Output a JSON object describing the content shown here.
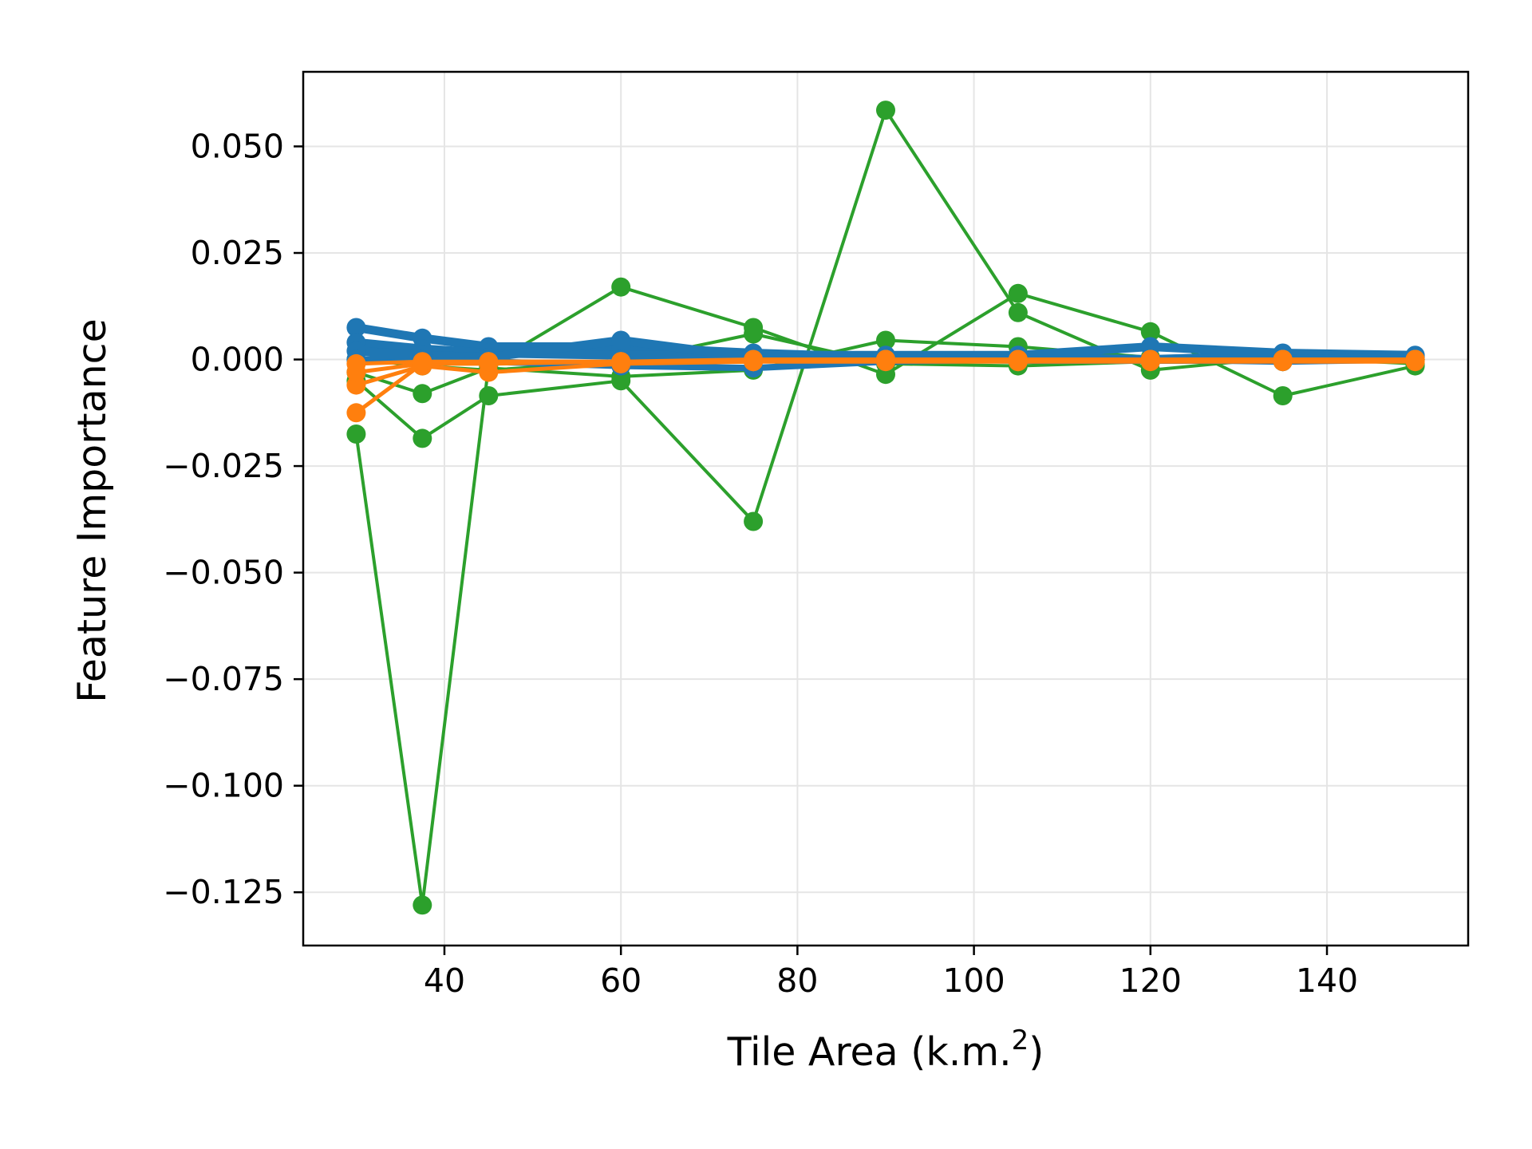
{
  "chart_data": {
    "type": "line",
    "title": "",
    "xlabel": "Tile Area (k.m.",
    "xlabel_superscript": "2",
    "xlabel_suffix": ")",
    "ylabel": "Feature Importance",
    "xlim": [
      24,
      156
    ],
    "ylim": [
      -0.1375,
      0.0675
    ],
    "grid": true,
    "legend": "none",
    "x": [
      30,
      37.5,
      45,
      60,
      75,
      90,
      105,
      120,
      135,
      150
    ],
    "x_ticks": [
      40,
      60,
      80,
      100,
      120,
      140
    ],
    "x_tick_labels": [
      "40",
      "60",
      "80",
      "100",
      "120",
      "140"
    ],
    "y_ticks": [
      0.05,
      0.025,
      0,
      -0.025,
      -0.05,
      -0.075,
      -0.1,
      -0.125
    ],
    "y_tick_labels": [
      "0.050",
      "0.025",
      "0.000",
      "−0.025",
      "−0.050",
      "−0.075",
      "−0.100",
      "−0.125"
    ],
    "colors": {
      "blue": "#1f77b4",
      "orange": "#ff7f0e",
      "green": "#2ca02c",
      "grid": "#e5e5e5",
      "axes": "#000000"
    },
    "series": [
      {
        "color": "green",
        "width": 4,
        "values": [
          -0.0175,
          -0.128,
          -0.0015,
          0.017,
          0.0075,
          -0.0035,
          0.0155,
          0.0065,
          -0.0085,
          -0.0015
        ]
      },
      {
        "color": "green",
        "width": 4,
        "values": [
          -0.005,
          -0.0185,
          -0.0085,
          -0.005,
          -0.038,
          0.0585,
          0.011,
          -0.0025,
          0.0005,
          -0.001
        ]
      },
      {
        "color": "green",
        "width": 4,
        "values": [
          -0.003,
          -0.008,
          -0.002,
          -0.004,
          -0.0025,
          0.0045,
          0.003,
          0.0005,
          -0.0005,
          0.0
        ]
      },
      {
        "color": "green",
        "width": 4,
        "values": [
          0.0,
          -0.0015,
          -0.0025,
          -0.0005,
          0.006,
          -0.001,
          -0.0015,
          -0.0005,
          0.0,
          0.0
        ]
      },
      {
        "color": "blue",
        "width": 11,
        "values": [
          0.0075,
          0.005,
          0.003,
          0.003,
          0.0015,
          0.0005,
          0.0005,
          0.0,
          0.001,
          0.0005
        ]
      },
      {
        "color": "blue",
        "width": 11,
        "values": [
          0.004,
          0.0025,
          0.0015,
          0.001,
          0.001,
          0.001,
          0.001,
          0.003,
          0.0015,
          0.001
        ]
      },
      {
        "color": "blue",
        "width": 11,
        "values": [
          0.002,
          0.001,
          0.0005,
          0.0045,
          0.0005,
          0.0005,
          0.0,
          0.0,
          0.0,
          0.0005
        ]
      },
      {
        "color": "blue",
        "width": 8,
        "values": [
          0.0,
          0.0,
          -0.0005,
          -0.0015,
          -0.002,
          -0.0005,
          0.0,
          0.0,
          -0.0005,
          0.0
        ]
      },
      {
        "color": "orange",
        "width": 5,
        "values": [
          -0.0125,
          -0.001,
          -0.0005,
          -0.0005,
          -0.0005,
          0.0,
          0.0,
          0.0,
          0.0,
          0.0
        ]
      },
      {
        "color": "orange",
        "width": 5,
        "values": [
          -0.006,
          -0.0015,
          -0.003,
          -0.001,
          -0.0005,
          0.0,
          -0.0005,
          0.0,
          0.0,
          0.0
        ]
      },
      {
        "color": "orange",
        "width": 5,
        "values": [
          -0.003,
          -0.001,
          -0.001,
          -0.0005,
          0.0,
          0.0,
          0.0,
          0.0,
          0.0,
          0.0
        ]
      },
      {
        "color": "orange",
        "width": 5,
        "values": [
          -0.001,
          -0.0005,
          -0.0005,
          -0.0005,
          -0.0005,
          -0.0005,
          -0.0005,
          -0.0005,
          -0.0005,
          -0.0005
        ]
      }
    ]
  }
}
